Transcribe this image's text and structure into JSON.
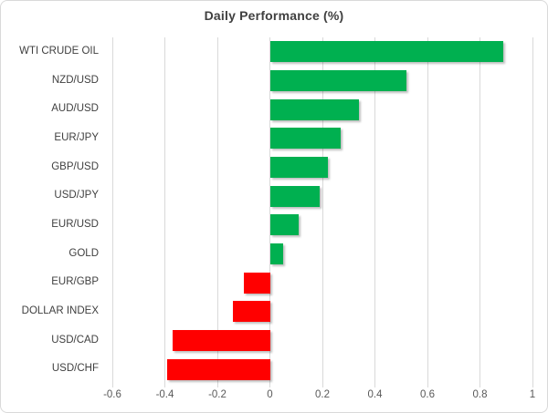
{
  "chart_data": {
    "type": "bar",
    "orientation": "horizontal",
    "title": "Daily Performance (%)",
    "categories": [
      "WTI CRUDE OIL",
      "NZD/USD",
      "AUD/USD",
      "EUR/JPY",
      "GBP/USD",
      "USD/JPY",
      "EUR/USD",
      "GOLD",
      "EUR/GBP",
      "DOLLAR INDEX",
      "USD/CAD",
      "USD/CHF"
    ],
    "values": [
      0.89,
      0.52,
      0.34,
      0.27,
      0.22,
      0.19,
      0.11,
      0.05,
      -0.1,
      -0.14,
      -0.37,
      -0.39
    ],
    "xlabel": "",
    "ylabel": "",
    "xlim": [
      -0.6,
      1.0
    ],
    "x_ticks": [
      -0.6,
      -0.4,
      -0.2,
      0,
      0.2,
      0.4,
      0.6,
      0.8,
      1
    ],
    "x_tick_labels": [
      "-0.6",
      "-0.4",
      "-0.2",
      "0",
      "0.2",
      "0.4",
      "0.6",
      "0.8",
      "1"
    ],
    "grid": true,
    "legend": false,
    "colors": {
      "positive": "#00b050",
      "negative": "#ff0000",
      "gridline": "#d9d9d9",
      "title_text": "#404040",
      "category_text": "#404040",
      "tick_text": "#595959",
      "border": "#d9d9d9",
      "background": "#ffffff"
    }
  }
}
